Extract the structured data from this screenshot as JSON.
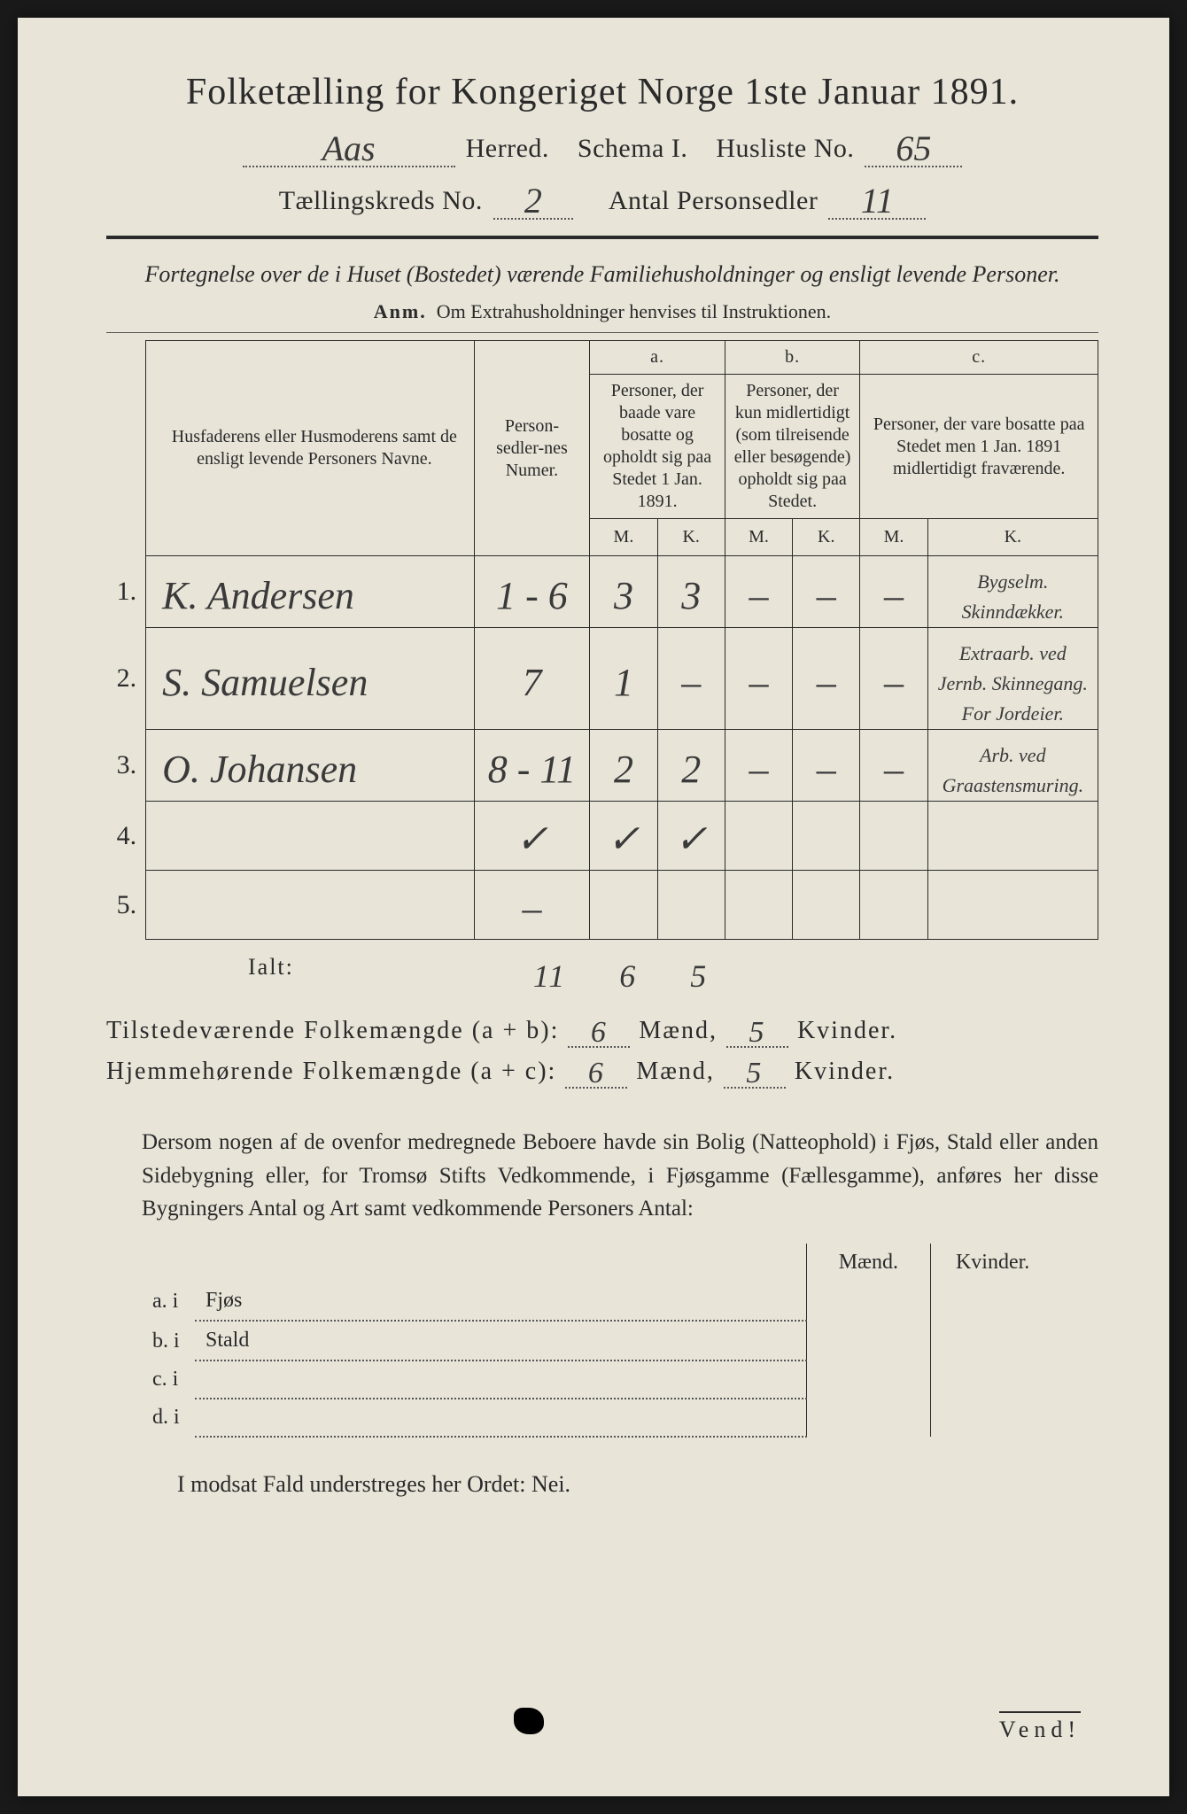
{
  "colors": {
    "paper": "#e8e4d8",
    "ink": "#2a2a2a",
    "background": "#1a1a1a"
  },
  "title": "Folketælling for Kongeriget Norge 1ste Januar 1891.",
  "header": {
    "herred_hand": "Aas",
    "herred_label": "Herred.",
    "schema": "Schema I.",
    "husliste_label": "Husliste No.",
    "husliste_no": "65",
    "tkreds_label": "Tællingskreds No.",
    "tkreds_no": "2",
    "antal_label": "Antal Personsedler",
    "antal_no": "11"
  },
  "subtitle": "Fortegnelse over de i Huset (Bostedet) værende Familiehusholdninger og ensligt levende Personer.",
  "anm_label": "Anm.",
  "anm_text": "Om Extrahusholdninger henvises til Instruktionen.",
  "table": {
    "col_names": "Husfaderens eller Husmoderens samt de ensligt levende Personers Navne.",
    "col_num": "Person-sedler-nes Numer.",
    "col_a_letter": "a.",
    "col_a": "Personer, der baade vare bosatte og opholdt sig paa Stedet 1 Jan. 1891.",
    "col_b_letter": "b.",
    "col_b": "Personer, der kun midlertidigt (som tilreisende eller besøgende) opholdt sig paa Stedet.",
    "col_c_letter": "c.",
    "col_c": "Personer, der vare bosatte paa Stedet men 1 Jan. 1891 midlertidigt fraværende.",
    "m": "M.",
    "k": "K.",
    "rows": [
      {
        "n": "1.",
        "name": "K. Andersen",
        "num": "1 - 6",
        "aM": "3",
        "aK": "3",
        "bM": "–",
        "bK": "–",
        "cM": "–",
        "cK": "Bygselm. Skinndækker."
      },
      {
        "n": "2.",
        "name": "S. Samuelsen",
        "num": "7",
        "aM": "1",
        "aK": "–",
        "bM": "–",
        "bK": "–",
        "cM": "–",
        "cK": "Extraarb. ved Jernb. Skinnegang. For Jordeier."
      },
      {
        "n": "3.",
        "name": "O. Johansen",
        "num": "8 - 11",
        "aM": "2",
        "aK": "2",
        "bM": "–",
        "bK": "–",
        "cM": "–",
        "cK": "Arb. ved Graastensmuring."
      },
      {
        "n": "4.",
        "name": "",
        "num": "✓",
        "aM": "✓",
        "aK": "✓",
        "bM": "",
        "bK": "",
        "cM": "",
        "cK": ""
      },
      {
        "n": "5.",
        "name": "",
        "num": "–",
        "aM": "",
        "aK": "",
        "bM": "",
        "bK": "",
        "cM": "",
        "cK": ""
      }
    ],
    "ialt_label": "Ialt:",
    "ialt_num": "11",
    "ialt_m": "6",
    "ialt_k": "5"
  },
  "summary": {
    "line1_a": "Tilstedeværende Folkemængde (a + b):",
    "line1_m": "6",
    "line1_mlabel": "Mænd,",
    "line1_k": "5",
    "line1_klabel": "Kvinder.",
    "line2_a": "Hjemmehørende Folkemængde (a + c):",
    "line2_m": "6",
    "line2_k": "5"
  },
  "paragraph": "Dersom nogen af de ovenfor medregnede Beboere havde sin Bolig (Natteophold) i Fjøs, Stald eller anden Sidebygning eller, for Tromsø Stifts Vedkommende, i Fjøsgamme (Fællesgamme), anføres her disse Bygningers Antal og Art samt vedkommende Personers Antal:",
  "fjos": {
    "maend": "Mænd.",
    "kvinder": "Kvinder.",
    "rows": [
      {
        "l": "a.  i",
        "t": "Fjøs"
      },
      {
        "l": "b.  i",
        "t": "Stald"
      },
      {
        "l": "c.  i",
        "t": ""
      },
      {
        "l": "d.  i",
        "t": ""
      }
    ]
  },
  "nei": "I modsat Fald understreges her Ordet: Nei.",
  "vend": "Vend!"
}
